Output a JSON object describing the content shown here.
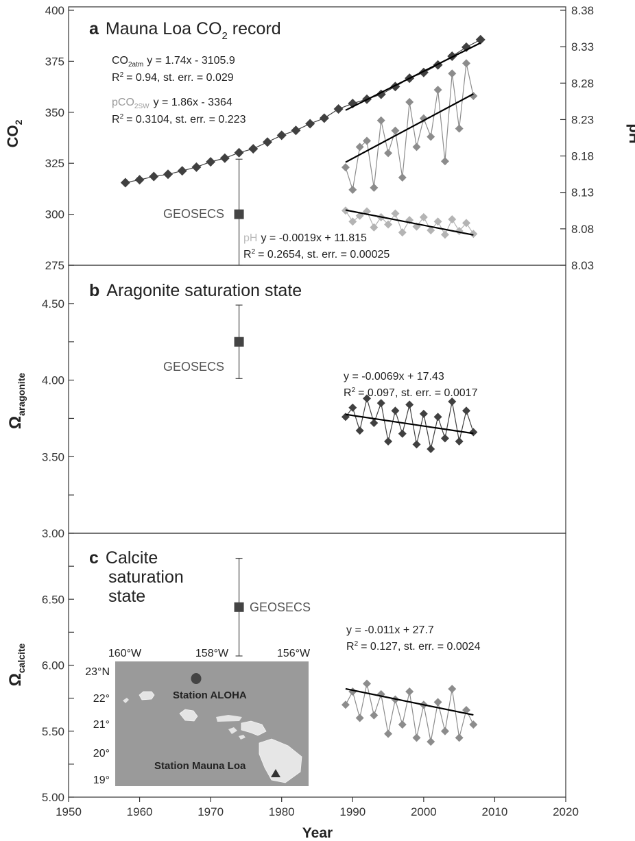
{
  "chart_data": [
    {
      "panel": "a",
      "type": "line",
      "title": "Mauna Loa CO",
      "title_sub": "2",
      "title_suffix": " record",
      "ylabel": "CO",
      "ylabel_sub": "2",
      "y2label": "pH",
      "xlim": [
        1950,
        2020
      ],
      "ylim": [
        275,
        400
      ],
      "yticks": [
        "275",
        "300",
        "325",
        "350",
        "375",
        "400"
      ],
      "y2lim": [
        8.03,
        8.38
      ],
      "y2ticks": [
        "8.03",
        "8.08",
        "8.13",
        "8.18",
        "8.23",
        "8.28",
        "8.33",
        "8.38"
      ],
      "series": [
        {
          "name": "CO2atm",
          "color": "#404040",
          "marker": "diamond",
          "x": [
            1958,
            1960,
            1962,
            1964,
            1966,
            1968,
            1970,
            1972,
            1974,
            1976,
            1978,
            1980,
            1982,
            1984,
            1986,
            1988,
            1990,
            1992,
            1994,
            1996,
            1998,
            2000,
            2002,
            2004,
            2006,
            2008
          ],
          "y": [
            315.5,
            316.9,
            318.5,
            319.6,
            321.3,
            323.1,
            325.7,
            327.5,
            330.2,
            332.1,
            335.4,
            338.7,
            341.1,
            344.4,
            347.1,
            351.6,
            354.3,
            356.4,
            358.8,
            362.6,
            366.7,
            369.5,
            373.2,
            377.5,
            381.9,
            385.6
          ]
        },
        {
          "name": "pCO2sw",
          "color": "#8c8c8c",
          "marker": "diamond",
          "x": [
            1989,
            1990,
            1991,
            1992,
            1993,
            1994,
            1995,
            1996,
            1997,
            1998,
            1999,
            2000,
            2001,
            2002,
            2003,
            2004,
            2005,
            2006,
            2007
          ],
          "y": [
            323,
            312,
            333,
            336,
            313,
            346,
            330,
            341,
            318,
            355,
            333,
            347,
            338,
            361,
            326,
            369,
            342,
            374,
            358
          ]
        },
        {
          "name": "pH",
          "color": "#b4b4b4",
          "marker": "diamond",
          "x": [
            1989,
            1990,
            1991,
            1992,
            1993,
            1994,
            1995,
            1996,
            1997,
            1998,
            1999,
            2000,
            2001,
            2002,
            2003,
            2004,
            2005,
            2006,
            2007
          ],
          "y": [
            8.105,
            8.09,
            8.098,
            8.104,
            8.082,
            8.096,
            8.086,
            8.101,
            8.075,
            8.092,
            8.083,
            8.096,
            8.078,
            8.09,
            8.072,
            8.093,
            8.077,
            8.088,
            8.073
          ]
        }
      ],
      "trendlines": [
        {
          "of": "CO2atm",
          "equation": "y = 1.74x - 3105.9",
          "stats": "= 0.94, st. err. = 0.029",
          "x": [
            1989,
            2008
          ],
          "y": [
            351.0,
            384.0
          ]
        },
        {
          "of": "pCO2sw",
          "equation": "y = 1.86x - 3364",
          "stats": "= 0.3104, st. err. = 0.223",
          "x": [
            1989,
            2007
          ],
          "y": [
            325.5,
            359.0
          ]
        },
        {
          "of": "pH",
          "equation": "y = -0.0019x + 11.815",
          "stats": "= 0.2654, st. err. = 0.00025",
          "x": [
            1989,
            2007
          ],
          "y": [
            8.1058,
            8.0716
          ]
        }
      ],
      "legend_labels": {
        "co2atm": "CO",
        "co2atm_sub": "2atm",
        "pco2sw": "pCO",
        "pco2sw_sub": "2SW",
        "ph": "pH"
      },
      "geosecs": {
        "label": "GEOSECS",
        "x": 1974,
        "y": 300,
        "err_low": 275,
        "err_high": 327
      }
    },
    {
      "panel": "b",
      "type": "line",
      "title": "Aragonite saturation state",
      "ylabel": "Ω",
      "ylabel_sub": "aragonite",
      "xlim": [
        1950,
        2020
      ],
      "ylim": [
        3.0,
        4.75
      ],
      "yticks": [
        "3.00",
        "3.50",
        "4.00",
        "4.50"
      ],
      "series": [
        {
          "name": "Ω aragonite",
          "color": "#404040",
          "marker": "diamond",
          "x": [
            1989,
            1990,
            1991,
            1992,
            1993,
            1994,
            1995,
            1996,
            1997,
            1998,
            1999,
            2000,
            2001,
            2002,
            2003,
            2004,
            2005,
            2006,
            2007
          ],
          "y": [
            3.76,
            3.82,
            3.67,
            3.88,
            3.72,
            3.85,
            3.6,
            3.8,
            3.65,
            3.84,
            3.58,
            3.78,
            3.55,
            3.76,
            3.62,
            3.86,
            3.6,
            3.8,
            3.66
          ]
        }
      ],
      "trendlines": [
        {
          "equation": "y = -0.0069x + 17.43",
          "stats": "= 0.097, st. err. = 0.0017",
          "x": [
            1989,
            2007
          ],
          "y": [
            3.7759,
            3.6517
          ]
        }
      ],
      "geosecs": {
        "label": "GEOSECS",
        "x": 1974,
        "y": 4.25,
        "err_low": 4.01,
        "err_high": 4.49
      }
    },
    {
      "panel": "c",
      "type": "line",
      "title_lines": [
        "Calcite",
        "saturation",
        "state"
      ],
      "ylabel": "Ω",
      "ylabel_sub": "calcite",
      "xlabel": "Year",
      "xlim": [
        1950,
        2020
      ],
      "xticks": [
        "1950",
        "1960",
        "1970",
        "1980",
        "1990",
        "2000",
        "2010",
        "2020"
      ],
      "ylim": [
        5.0,
        7.0
      ],
      "yticks": [
        "5.00",
        "5.50",
        "6.00",
        "6.50"
      ],
      "series": [
        {
          "name": "Ω calcite",
          "color": "#8c8c8c",
          "marker": "diamond",
          "x": [
            1989,
            1990,
            1991,
            1992,
            1993,
            1994,
            1995,
            1996,
            1997,
            1998,
            1999,
            2000,
            2001,
            2002,
            2003,
            2004,
            2005,
            2006,
            2007
          ],
          "y": [
            5.7,
            5.8,
            5.6,
            5.86,
            5.62,
            5.78,
            5.48,
            5.74,
            5.55,
            5.8,
            5.45,
            5.7,
            5.42,
            5.72,
            5.5,
            5.82,
            5.45,
            5.66,
            5.55
          ]
        }
      ],
      "trendlines": [
        {
          "equation": "y = -0.011x + 27.7",
          "stats": "= 0.127, st. err. = 0.0024",
          "x": [
            1989,
            2007
          ],
          "y": [
            5.821,
            5.623
          ]
        }
      ],
      "geosecs": {
        "label": "GEOSECS",
        "x": 1974,
        "y": 6.44,
        "err_low": 6.07,
        "err_high": 6.81
      }
    }
  ],
  "r2_label": "R",
  "r2_sup": "2",
  "map": {
    "lon_labels": [
      "160°W",
      "158°W",
      "156°W"
    ],
    "lat_labels": [
      "23°N",
      "22°",
      "21°",
      "20°",
      "19°"
    ],
    "station_aloha": "Station ALOHA",
    "station_mauna_loa": "Station Mauna Loa",
    "ocean_color": "#9a9a9a"
  }
}
